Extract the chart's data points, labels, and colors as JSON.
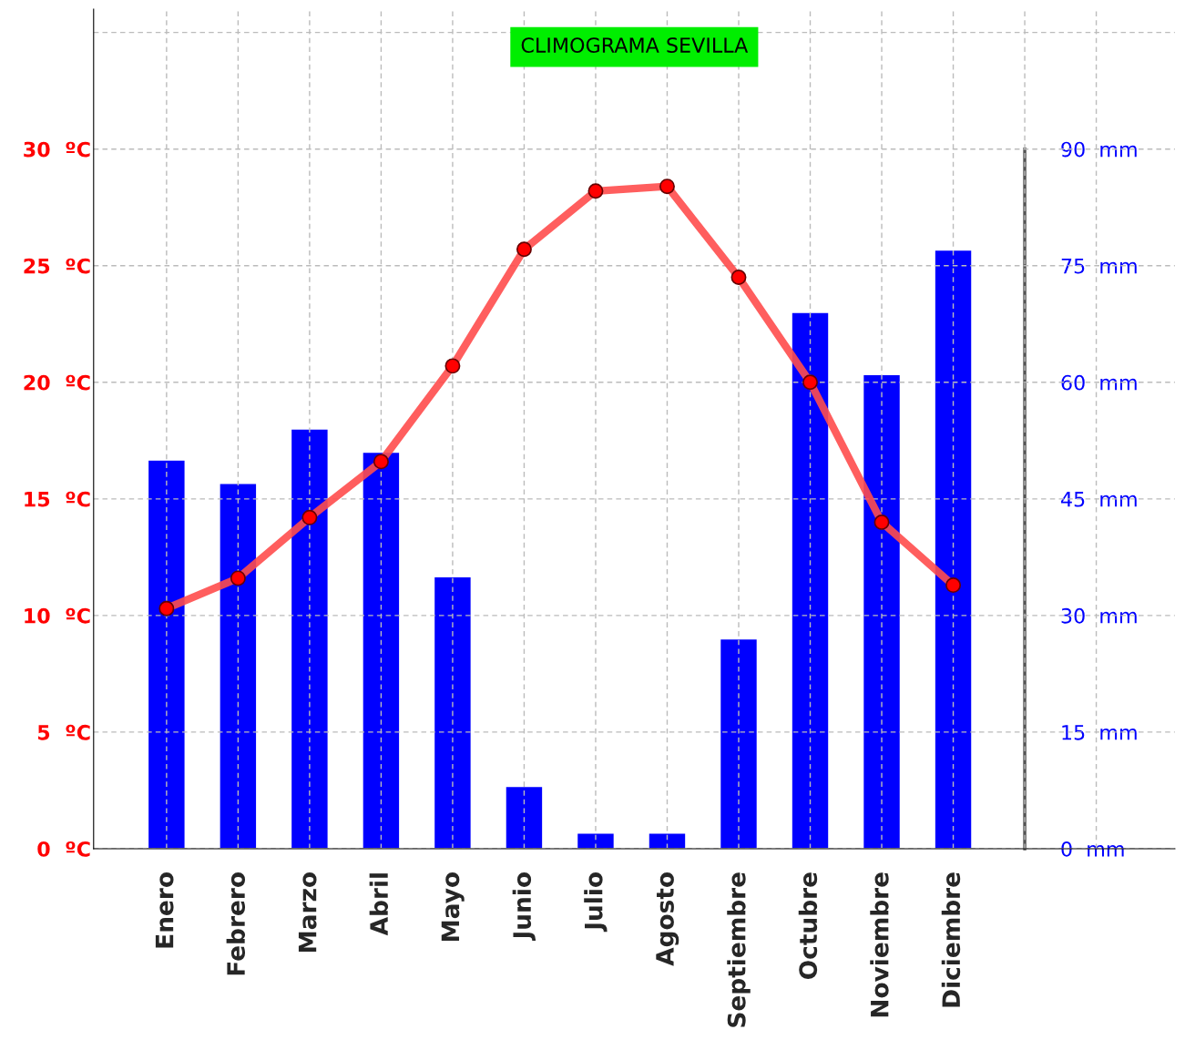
{
  "chart_data": {
    "type": "bar",
    "title": "CLIMOGRAMA SEVILLA",
    "categories": [
      "Enero",
      "Febrero",
      "Marzo",
      "Abril",
      "Mayo",
      "Junio",
      "Julio",
      "Agosto",
      "Septiembre",
      "Octubre",
      "Noviembre",
      "Diciembre"
    ],
    "series": [
      {
        "axis": "y2",
        "color": "#0000ff",
        "values": [
          50,
          47,
          54,
          51,
          35,
          8,
          2,
          2,
          27,
          69,
          61,
          77
        ]
      },
      {
        "type": "line",
        "axis": "y",
        "color": "#ff4d4d",
        "marker": "circle",
        "values": [
          10.3,
          11.6,
          14.2,
          16.6,
          20.7,
          25.7,
          28.2,
          28.4,
          24.5,
          20.0,
          14.0,
          11.3
        ]
      }
    ],
    "ylim": [
      0,
      36
    ],
    "yticks": [
      {
        "value": 0,
        "label": "0  ºC"
      },
      {
        "value": 5,
        "label": "5  ºC"
      },
      {
        "value": 10,
        "label": "10  ºC"
      },
      {
        "value": 15,
        "label": "15  ºC"
      },
      {
        "value": 20,
        "label": "20  ºC"
      },
      {
        "value": 25,
        "label": "25  ºC"
      },
      {
        "value": 30,
        "label": "30  ºC"
      },
      {
        "value": 35,
        "label": null
      }
    ],
    "y2lim": [
      0,
      108
    ],
    "y2ticks": [
      {
        "value": 0,
        "label": "0  mm"
      },
      {
        "value": 15,
        "label": "15  mm"
      },
      {
        "value": 30,
        "label": "30  mm"
      },
      {
        "value": 45,
        "label": "45  mm"
      },
      {
        "value": 60,
        "label": "60  mm"
      },
      {
        "value": 75,
        "label": "75  mm"
      },
      {
        "value": 90,
        "label": "90  mm"
      }
    ],
    "grid": true,
    "legend": false
  }
}
